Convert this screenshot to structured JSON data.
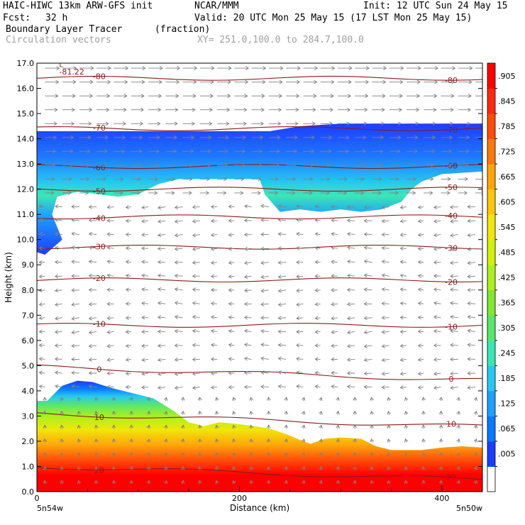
{
  "header": {
    "model": "HAIC-HIWC 13km ARW-GFS init",
    "org": "NCAR/MMM",
    "init": "Init: 12 UTC Sun 24 May 15",
    "fcst_label": "Fcst:",
    "fcst_value": "32 h",
    "valid": "Valid: 20 UTC Mon 25 May 15 (17 LST Mon 25 May 15)",
    "field_name": "Boundary Layer Tracer",
    "field_units": "(fraction)",
    "vector_name": "Circulation vectors",
    "xy_range": "XY= 251.0,100.0 to 284.7,100.0"
  },
  "colors": {
    "contour": "#8b1a1a",
    "vector": "#808080"
  },
  "chart_data": {
    "type": "heatmap",
    "xlabel": "Distance (km)",
    "ylabel": "Height (km)",
    "xlim": [
      0,
      440
    ],
    "ylim": [
      0,
      17
    ],
    "x_ticks": [
      0,
      200,
      400
    ],
    "x_tick_labels": [
      "0",
      "200",
      "400"
    ],
    "y_ticks": [
      0,
      1,
      2,
      3,
      4,
      5,
      6,
      7,
      8,
      9,
      10,
      11,
      12,
      13,
      14,
      15,
      16,
      17
    ],
    "y_tick_labels": [
      "0.0",
      "1.0",
      "2.0",
      "3.0",
      "4.0",
      "5.0",
      "6.0",
      "7.0",
      "8.0",
      "9.0",
      "10.0",
      "11.0",
      "12.0",
      "13.0",
      "14.0",
      "15.0",
      "16.0",
      "17.0"
    ],
    "x_endpoint_labels": [
      "5n54w",
      "5n50w"
    ],
    "colorbar": {
      "levels": [
        0.005,
        0.065,
        0.125,
        0.185,
        0.245,
        0.305,
        0.365,
        0.425,
        0.485,
        0.545,
        0.605,
        0.665,
        0.725,
        0.785,
        0.845,
        0.905
      ],
      "labels": [
        ".005",
        ".065",
        ".125",
        ".185",
        ".245",
        ".305",
        ".365",
        ".425",
        ".485",
        ".545",
        ".605",
        ".665",
        ".725",
        ".785",
        ".845",
        ".905"
      ],
      "colors": [
        "#ffffff",
        "#1e3cff",
        "#0a78ff",
        "#1ea0ff",
        "#28c8f0",
        "#3ce6b4",
        "#5ae66e",
        "#82e632",
        "#aaf01e",
        "#d2f00a",
        "#f0e60a",
        "#ffc80a",
        "#ffa50a",
        "#ff780a",
        "#ff4b0a",
        "#ff2814",
        "#ff0000"
      ]
    },
    "temperature_contours": [
      {
        "value": -80,
        "label": "-80",
        "height_km": 16.4
      },
      {
        "value": -70,
        "label": "-70",
        "height_km": 14.4
      },
      {
        "value": -60,
        "label": "-60",
        "height_km": 12.9
      },
      {
        "value": -50,
        "label": "-50",
        "height_km": 12.0
      },
      {
        "value": -40,
        "label": "-40",
        "height_km": 10.9
      },
      {
        "value": -30,
        "label": "-30",
        "height_km": 9.7
      },
      {
        "value": -20,
        "label": "-20",
        "height_km": 8.4
      },
      {
        "value": -10,
        "label": "-10",
        "height_km": 6.6
      },
      {
        "value": 0,
        "label": "0",
        "height_km": 4.95
      },
      {
        "value": 10,
        "label": "10",
        "height_km": 3.1
      },
      {
        "value": 20,
        "label": "20",
        "height_km": 1.0
      }
    ],
    "extra_contour_labels": [
      "-81.22",
      "L"
    ],
    "lower_tracer_top_km": [
      [
        0,
        3.6
      ],
      [
        10,
        3.6
      ],
      [
        25,
        4.2
      ],
      [
        40,
        4.4
      ],
      [
        55,
        4.35
      ],
      [
        75,
        4.1
      ],
      [
        95,
        3.9
      ],
      [
        115,
        3.7
      ],
      [
        135,
        3.2
      ],
      [
        150,
        2.75
      ],
      [
        165,
        2.6
      ],
      [
        180,
        2.75
      ],
      [
        195,
        2.7
      ],
      [
        215,
        2.6
      ],
      [
        230,
        2.5
      ],
      [
        245,
        2.3
      ],
      [
        260,
        2.05
      ],
      [
        270,
        1.9
      ],
      [
        285,
        2.1
      ],
      [
        300,
        2.15
      ],
      [
        320,
        2.1
      ],
      [
        335,
        1.8
      ],
      [
        350,
        1.65
      ],
      [
        380,
        1.65
      ],
      [
        400,
        1.75
      ],
      [
        420,
        1.8
      ],
      [
        440,
        1.75
      ]
    ],
    "upper_tracer_top_km": [
      [
        0,
        14.3
      ],
      [
        230,
        14.3
      ],
      [
        260,
        14.5
      ],
      [
        300,
        14.6
      ],
      [
        440,
        14.6
      ]
    ],
    "upper_tracer_bottom_km": [
      [
        0,
        9.5
      ],
      [
        8,
        9.4
      ],
      [
        25,
        10.0
      ],
      [
        15,
        11.0
      ],
      [
        20,
        11.7
      ],
      [
        40,
        11.9
      ],
      [
        60,
        11.8
      ],
      [
        80,
        11.7
      ],
      [
        100,
        11.8
      ],
      [
        120,
        12.2
      ],
      [
        140,
        12.4
      ],
      [
        200,
        12.4
      ],
      [
        220,
        12.4
      ],
      [
        225,
        11.8
      ],
      [
        240,
        11.1
      ],
      [
        260,
        11.2
      ],
      [
        280,
        11.1
      ],
      [
        300,
        11.2
      ],
      [
        320,
        11.1
      ],
      [
        340,
        11.2
      ],
      [
        360,
        11.5
      ],
      [
        370,
        12.0
      ],
      [
        380,
        12.3
      ],
      [
        400,
        12.6
      ],
      [
        440,
        12.7
      ]
    ]
  }
}
